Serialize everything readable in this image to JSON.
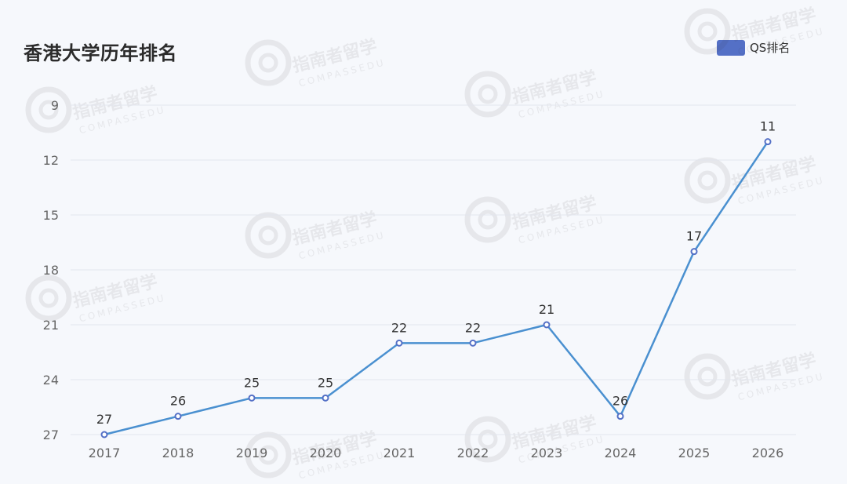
{
  "watermark": {
    "cn": "指南者留学",
    "en": "COMPASSEDU"
  },
  "colors": {
    "line": "#4a90d0",
    "marker_stroke": "#5470c6",
    "legend": "#5470c6",
    "grid": "#e3e6ee",
    "axis_text": "#666666",
    "label_text": "#333333"
  },
  "chart_data": {
    "type": "line",
    "title": "香港大学历年排名",
    "x": [
      "2017",
      "2018",
      "2019",
      "2020",
      "2021",
      "2022",
      "2023",
      "2024",
      "2025",
      "2026"
    ],
    "series": [
      {
        "name": "QS排名",
        "values": [
          27,
          26,
          25,
          25,
          22,
          22,
          21,
          26,
          17,
          11
        ]
      }
    ],
    "data_labels": [
      "27",
      "26",
      "25",
      "25",
      "22",
      "22",
      "21",
      "26",
      "17",
      "11"
    ],
    "y_ticks": [
      "9",
      "12",
      "15",
      "18",
      "21",
      "24",
      "27"
    ],
    "ylim": [
      9,
      27
    ],
    "y_inverted": true,
    "grid": true,
    "legend_position": "top-right"
  }
}
